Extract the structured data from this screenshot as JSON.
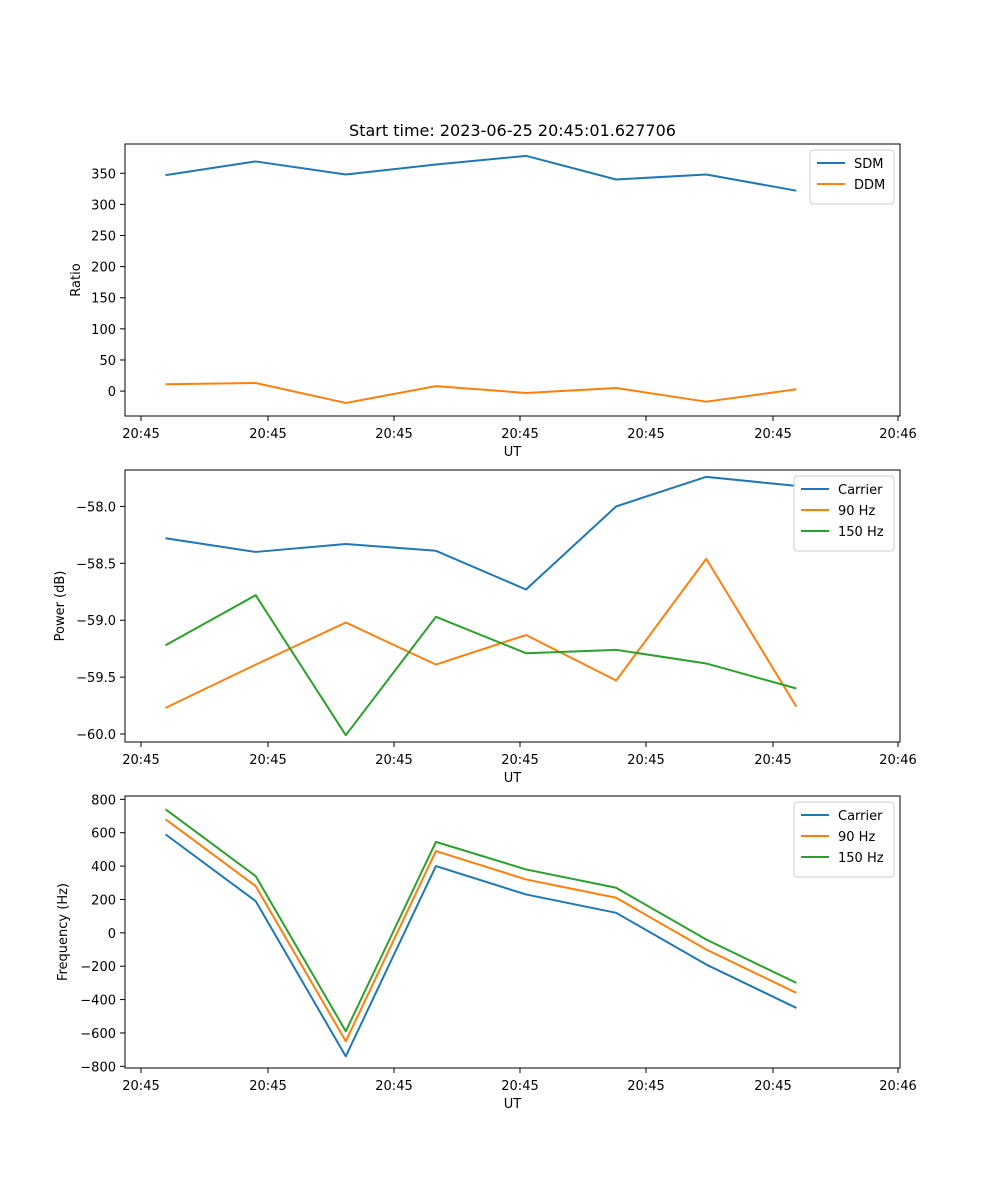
{
  "title": "Start time: 2023-06-25 20:45:01.627706",
  "x_tick_labels": [
    "20:45",
    "20:45",
    "20:45",
    "20:45",
    "20:45",
    "20:45",
    "20:46"
  ],
  "chart_data": [
    {
      "type": "line",
      "title": "Start time: 2023-06-25 20:45:01.627706",
      "xlabel": "UT",
      "ylabel": "Ratio",
      "x": [
        1,
        2,
        3,
        4,
        5,
        6,
        7,
        8
      ],
      "xlim": [
        0.55,
        9.15
      ],
      "ylim": [
        -40,
        397
      ],
      "yticks": [
        0,
        50,
        100,
        150,
        200,
        250,
        300,
        350
      ],
      "legend": "top-right",
      "grid": false,
      "series": [
        {
          "name": "SDM",
          "color": "#1f77b4",
          "values": [
            347,
            369,
            348,
            364,
            378,
            340,
            348,
            322
          ]
        },
        {
          "name": "DDM",
          "color": "#ff7f0e",
          "values": [
            11,
            13,
            -19,
            8,
            -3,
            5,
            -17,
            3
          ]
        }
      ]
    },
    {
      "type": "line",
      "title": "",
      "xlabel": "UT",
      "ylabel": "Power (dB)",
      "x": [
        1,
        2,
        3,
        4,
        5,
        6,
        7,
        8
      ],
      "xlim": [
        0.55,
        9.15
      ],
      "ylim": [
        -60.07,
        -57.68
      ],
      "yticks": [
        -60.0,
        -59.5,
        -59.0,
        -58.5,
        -58.0
      ],
      "ytick_labels": [
        "−60.0",
        "−59.5",
        "−59.0",
        "−58.5",
        "−58.0"
      ],
      "legend": "top-right",
      "grid": false,
      "series": [
        {
          "name": "Carrier",
          "color": "#1f77b4",
          "values": [
            -58.28,
            -58.4,
            -58.33,
            -58.39,
            -58.73,
            -58.0,
            -57.74,
            -57.82
          ]
        },
        {
          "name": "90 Hz",
          "color": "#ff7f0e",
          "values": [
            -59.77,
            -59.39,
            -59.02,
            -59.39,
            -59.13,
            -59.53,
            -58.46,
            -59.76
          ]
        },
        {
          "name": "150 Hz",
          "color": "#2ca02c",
          "values": [
            -59.22,
            -58.78,
            -60.01,
            -58.97,
            -59.29,
            -59.26,
            -59.38,
            -59.6
          ]
        }
      ]
    },
    {
      "type": "line",
      "title": "",
      "xlabel": "UT",
      "ylabel": "Frequency (Hz)",
      "x": [
        1,
        2,
        3,
        4,
        5,
        6,
        7,
        8
      ],
      "xlim": [
        0.55,
        9.15
      ],
      "ylim": [
        -810,
        820
      ],
      "yticks": [
        -800,
        -600,
        -400,
        -200,
        0,
        200,
        400,
        600,
        800
      ],
      "ytick_labels": [
        "−800",
        "−600",
        "−400",
        "−200",
        "0",
        "200",
        "400",
        "600",
        "800"
      ],
      "legend": "top-right",
      "grid": false,
      "series": [
        {
          "name": "Carrier",
          "color": "#1f77b4",
          "values": [
            590,
            190,
            -740,
            400,
            230,
            120,
            -190,
            -450
          ]
        },
        {
          "name": "90 Hz",
          "color": "#ff7f0e",
          "values": [
            680,
            280,
            -650,
            490,
            320,
            210,
            -100,
            -360
          ]
        },
        {
          "name": "150 Hz",
          "color": "#2ca02c",
          "values": [
            740,
            340,
            -590,
            545,
            380,
            270,
            -40,
            -300
          ]
        }
      ]
    }
  ]
}
